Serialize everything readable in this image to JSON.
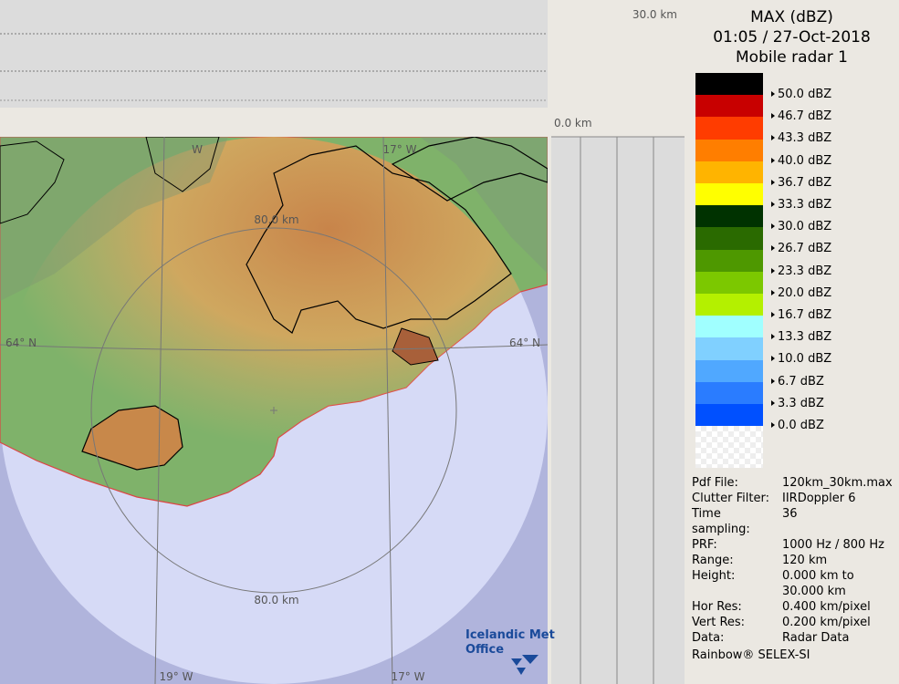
{
  "header": {
    "title": "MAX (dBZ)",
    "time": "01:05 / 27-Oct-2018",
    "radar": "Mobile radar 1"
  },
  "legend": [
    {
      "label": "50.0 dBZ",
      "color": "#000000"
    },
    {
      "label": "46.7 dBZ",
      "color": "#c80000"
    },
    {
      "label": "43.3 dBZ",
      "color": "#ff3c00"
    },
    {
      "label": "40.0 dBZ",
      "color": "#ff7e00"
    },
    {
      "label": "36.7 dBZ",
      "color": "#ffb400"
    },
    {
      "label": "33.3 dBZ",
      "color": "#ffff00"
    },
    {
      "label": "30.0 dBZ",
      "color": "#003200"
    },
    {
      "label": "26.7 dBZ",
      "color": "#2a6a00"
    },
    {
      "label": "23.3 dBZ",
      "color": "#4e9800"
    },
    {
      "label": "20.0 dBZ",
      "color": "#7cc800"
    },
    {
      "label": "16.7 dBZ",
      "color": "#b4f000"
    },
    {
      "label": "13.3 dBZ",
      "color": "#a0ffff"
    },
    {
      "label": "10.0 dBZ",
      "color": "#80d0ff"
    },
    {
      "label": "6.7 dBZ",
      "color": "#50a8ff"
    },
    {
      "label": "3.3 dBZ",
      "color": "#2a7cff"
    },
    {
      "label": "0.0 dBZ",
      "color": "#0050ff"
    }
  ],
  "info": [
    {
      "label": "Pdf File:",
      "values": [
        "120km_30km.max"
      ]
    },
    {
      "label": "Clutter Filter:",
      "values": [
        "IIRDoppler 6"
      ]
    },
    {
      "label": "Time sampling:",
      "values": [
        "36"
      ]
    },
    {
      "label": "PRF:",
      "values": [
        "1000 Hz / 800 Hz"
      ]
    },
    {
      "label": "Range:",
      "values": [
        "120 km"
      ]
    },
    {
      "label": "Height:",
      "values": [
        "0.000 km to",
        "30.000 km"
      ]
    },
    {
      "label": "Hor Res:",
      "values": [
        "0.400 km/pixel"
      ]
    },
    {
      "label": "Vert Res:",
      "values": [
        "0.200 km/pixel"
      ]
    },
    {
      "label": "Data:",
      "values": [
        "Radar Data"
      ]
    }
  ],
  "footer": "Rainbow® SELEX-SI",
  "map": {
    "top_km": "30.0 km",
    "zero_km": "0.0 km",
    "ring_top": "80.0 km",
    "ring_bottom": "80.0 km",
    "lon_top": "17° W",
    "lon_top_left": "W",
    "lat_left": "64° N",
    "lat_right": "64° N",
    "lon_bottom_left": "19° W",
    "lon_bottom_right": "17° W",
    "logo_line1": "Icelandic Met",
    "logo_line2": "Office"
  }
}
